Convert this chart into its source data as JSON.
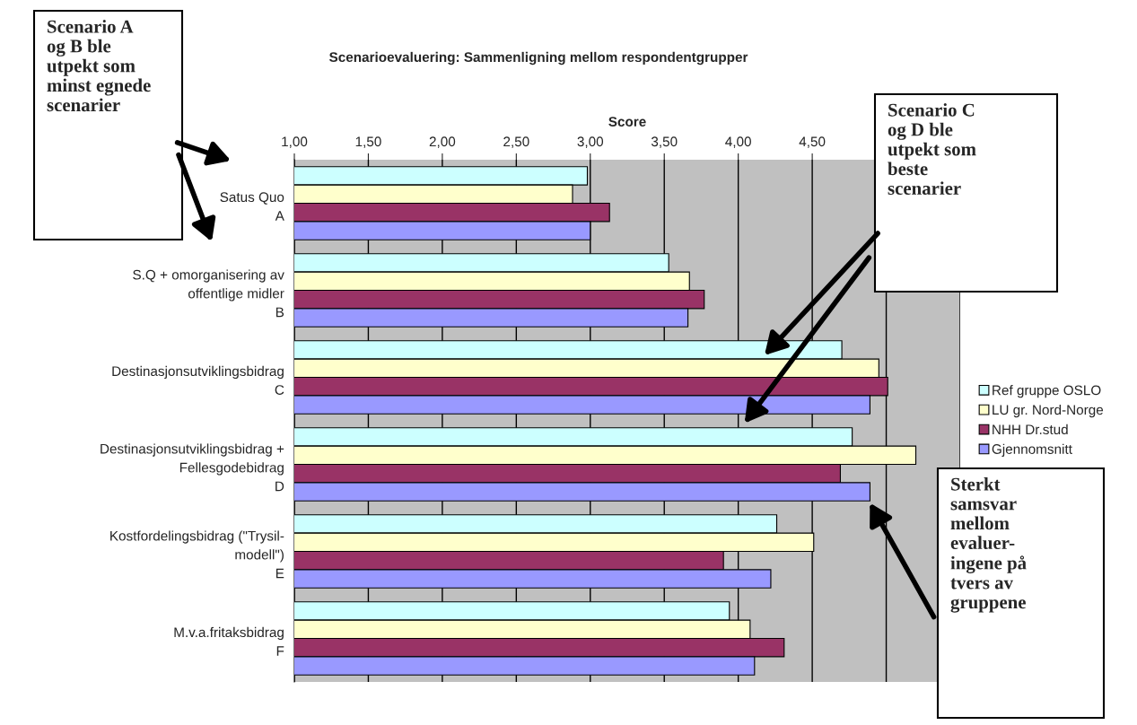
{
  "chart_data": {
    "type": "bar",
    "orientation": "horizontal",
    "title": "Scenarioevaluering: Sammenligning mellom respondentgrupper",
    "xlabel": "Score",
    "categories": [
      "Satus Quo\nA",
      "S.Q + omorganisering av\noffentlige midler\nB",
      "Destinasjonsutviklingsbidrag\nC",
      "Destinasjonsutviklingsbidrag +\nFellesgodebidrag\nD",
      "Kostfordelingsbidrag (\"Trysil-\nmodell\")\nE",
      "M.v.a.fritaksbidrag\nF"
    ],
    "series": [
      {
        "name": "Ref gruppe OSLO",
        "color": "#ccffff",
        "values": [
          2.98,
          3.53,
          4.7,
          4.77,
          4.26,
          3.94
        ]
      },
      {
        "name": "LU gr. Nord-Norge",
        "color": "#ffffcc",
        "values": [
          2.88,
          3.67,
          4.95,
          5.2,
          4.51,
          4.08
        ]
      },
      {
        "name": "NHH Dr.stud",
        "color": "#993366",
        "values": [
          3.13,
          3.77,
          5.01,
          4.69,
          3.9,
          4.31
        ]
      },
      {
        "name": "Gjennomsnitt",
        "color": "#9999ff",
        "values": [
          3.0,
          3.66,
          4.89,
          4.89,
          4.22,
          4.11
        ]
      }
    ],
    "xlim": [
      1,
      5.5
    ],
    "xticks": [
      {
        "value": 1,
        "label": "1,00"
      },
      {
        "value": 1.5,
        "label": "1,50"
      },
      {
        "value": 2,
        "label": "2,00"
      },
      {
        "value": 2.5,
        "label": "2,50"
      },
      {
        "value": 3,
        "label": "3,00"
      },
      {
        "value": 3.5,
        "label": "3,50"
      },
      {
        "value": 4,
        "label": "4,00"
      },
      {
        "value": 4.5,
        "label": "4,50"
      },
      {
        "value": 5,
        "label": null
      },
      {
        "value": 5.5,
        "label": null
      }
    ],
    "grid": "x",
    "legend": "right",
    "annotations": [
      "Scenario A\nog B ble\nutpekt som\nminst egnede\nscenarier",
      "Scenario C\nog D ble\nutpekt som\nbeste\nscenarier",
      "Sterkt\nsamsvar\nmellom\nevaluer-\ningene på\ntvers av\ngruppene"
    ]
  }
}
